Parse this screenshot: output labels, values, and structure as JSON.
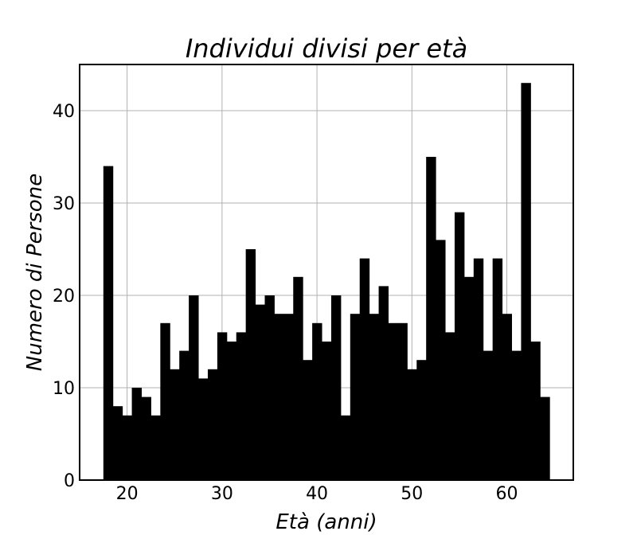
{
  "chart_data": {
    "type": "bar",
    "subtype": "histogram",
    "title": "Individui divisi per età",
    "xlabel": "Età (anni)",
    "ylabel": "Numero di Persone",
    "xlim": [
      15,
      67
    ],
    "ylim": [
      0,
      45
    ],
    "xticks": [
      20,
      30,
      40,
      50,
      60
    ],
    "yticks": [
      0,
      10,
      20,
      30,
      40
    ],
    "grid": true,
    "bar_color": "#000000",
    "bin_start": 17.5,
    "bin_width": 1,
    "x": [
      18,
      19,
      20,
      21,
      22,
      23,
      24,
      25,
      26,
      27,
      28,
      29,
      30,
      31,
      32,
      33,
      34,
      35,
      36,
      37,
      38,
      39,
      40,
      41,
      42,
      43,
      44,
      45,
      46,
      47,
      48,
      49,
      50,
      51,
      52,
      53,
      54,
      55,
      56,
      57,
      58,
      59,
      60,
      61,
      62,
      63,
      64
    ],
    "values": [
      34,
      8,
      7,
      10,
      9,
      7,
      17,
      12,
      14,
      20,
      11,
      12,
      16,
      15,
      16,
      25,
      19,
      20,
      18,
      18,
      22,
      13,
      17,
      15,
      20,
      7,
      18,
      24,
      18,
      21,
      17,
      17,
      12,
      13,
      35,
      26,
      16,
      29,
      22,
      24,
      14,
      24,
      18,
      14,
      43,
      15,
      9
    ]
  }
}
